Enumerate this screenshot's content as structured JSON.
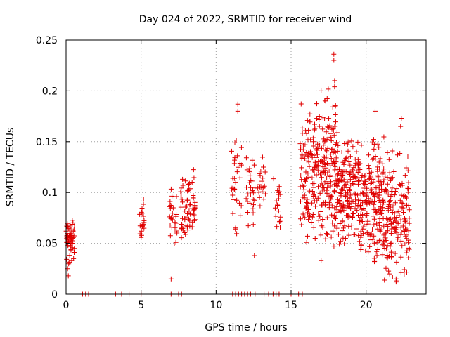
{
  "chart_data": {
    "type": "scatter",
    "title": "Day 024 of 2022, SRMTID for receiver wind",
    "xlabel": "GPS time / hours",
    "ylabel": "SRMTID / TECUs",
    "xlim": [
      0,
      24
    ],
    "ylim": [
      0,
      0.25
    ],
    "xticks": [
      0,
      5,
      10,
      15,
      20
    ],
    "xtick_labels": [
      "0",
      "5",
      "10",
      "15",
      "20"
    ],
    "yticks": [
      0,
      0.05,
      0.1,
      0.15,
      0.2,
      0.25
    ],
    "ytick_labels": [
      "0",
      "0.05",
      "0.1",
      "0.15",
      "0.2",
      "0.25"
    ],
    "grid": true,
    "marker": "+",
    "color": "#e00000",
    "clusters": [
      {
        "x_start": 0.0,
        "x_end": 0.6,
        "y_min": 0.02,
        "y_max": 0.075,
        "y_mid": 0.052,
        "count": 60
      },
      {
        "x_start": 4.9,
        "x_end": 5.2,
        "y_min": 0.048,
        "y_max": 0.095,
        "y_mid": 0.075,
        "count": 18
      },
      {
        "x_start": 6.9,
        "x_end": 7.4,
        "y_min": 0.04,
        "y_max": 0.105,
        "y_mid": 0.075,
        "count": 30
      },
      {
        "x_start": 7.6,
        "x_end": 8.6,
        "y_min": 0.045,
        "y_max": 0.135,
        "y_mid": 0.085,
        "count": 70
      },
      {
        "x_start": 11.0,
        "x_end": 11.7,
        "y_min": 0.05,
        "y_max": 0.185,
        "y_mid": 0.11,
        "count": 30
      },
      {
        "x_start": 12.0,
        "x_end": 12.6,
        "y_min": 0.04,
        "y_max": 0.14,
        "y_mid": 0.1,
        "count": 30
      },
      {
        "x_start": 12.7,
        "x_end": 13.3,
        "y_min": 0.08,
        "y_max": 0.145,
        "y_mid": 0.11,
        "count": 20
      },
      {
        "x_start": 13.8,
        "x_end": 14.3,
        "y_min": 0.06,
        "y_max": 0.13,
        "y_mid": 0.09,
        "count": 20
      },
      {
        "x_start": 15.6,
        "x_end": 17.2,
        "y_min": 0.05,
        "y_max": 0.2,
        "y_mid": 0.12,
        "count": 170
      },
      {
        "x_start": 17.2,
        "x_end": 18.0,
        "y_min": 0.04,
        "y_max": 0.235,
        "y_mid": 0.12,
        "count": 110
      },
      {
        "x_start": 18.0,
        "x_end": 19.6,
        "y_min": 0.04,
        "y_max": 0.16,
        "y_mid": 0.1,
        "count": 190
      },
      {
        "x_start": 19.6,
        "x_end": 21.2,
        "y_min": 0.03,
        "y_max": 0.18,
        "y_mid": 0.09,
        "count": 190
      },
      {
        "x_start": 21.2,
        "x_end": 22.9,
        "y_min": 0.012,
        "y_max": 0.17,
        "y_mid": 0.075,
        "count": 160
      }
    ],
    "points": [
      [
        17.85,
        0.236
      ],
      [
        17.85,
        0.23
      ],
      [
        17.9,
        0.21
      ],
      [
        17.9,
        0.204
      ],
      [
        17.0,
        0.2
      ],
      [
        17.3,
        0.19
      ],
      [
        20.6,
        0.18
      ],
      [
        22.35,
        0.173
      ],
      [
        22.3,
        0.165
      ],
      [
        11.45,
        0.187
      ],
      [
        11.45,
        0.18
      ],
      [
        17.95,
        0.185
      ],
      [
        7.0,
        0.015
      ],
      [
        22.0,
        0.015
      ],
      [
        22.0,
        0.012
      ],
      [
        0.15,
        0.018
      ],
      [
        0.1,
        0.025
      ],
      [
        17.0,
        0.033
      ],
      [
        12.55,
        0.038
      ],
      [
        0.5,
        0.035
      ]
    ],
    "zero_points": [
      1.1,
      1.3,
      1.5,
      3.3,
      3.7,
      4.2,
      5.0,
      7.0,
      7.5,
      7.7,
      11.1,
      11.3,
      11.5,
      11.7,
      11.9,
      12.1,
      12.3,
      12.6,
      13.2,
      13.5,
      13.8,
      14.0,
      14.2,
      15.0,
      15.5,
      15.75
    ]
  }
}
